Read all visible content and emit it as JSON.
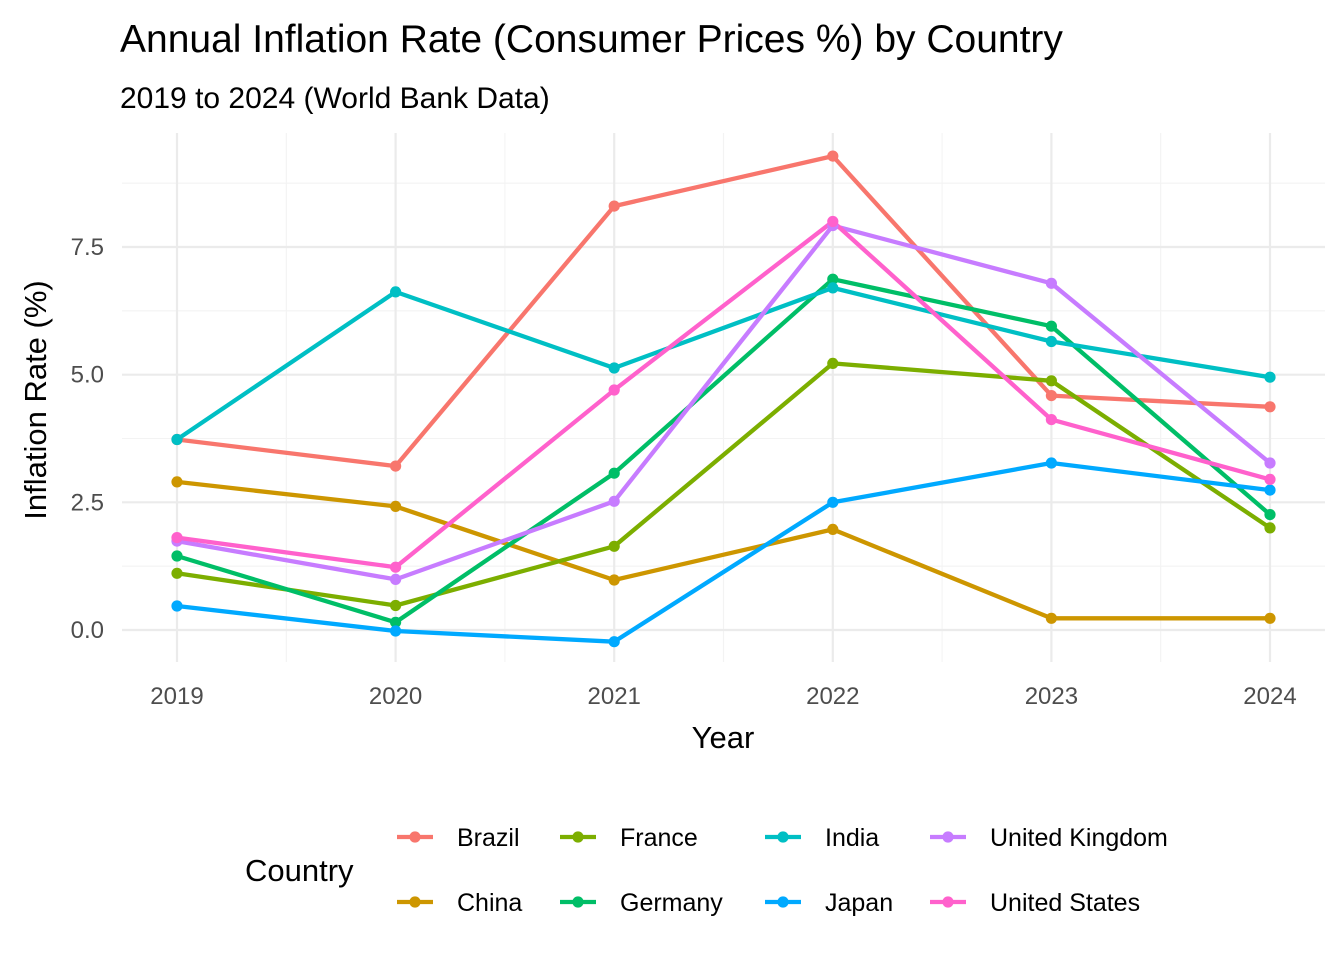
{
  "chart_data": {
    "type": "line",
    "title": "Annual Inflation Rate (Consumer Prices %) by Country",
    "subtitle": "2019 to 2024 (World Bank Data)",
    "xlabel": "Year",
    "ylabel": "Inflation Rate (%)",
    "x": [
      "2019",
      "2020",
      "2021",
      "2022",
      "2023",
      "2024"
    ],
    "y_ticks": [
      "0.0",
      "2.5",
      "5.0",
      "7.5"
    ],
    "y_tick_values": [
      0,
      2.5,
      5,
      7.5
    ],
    "ylim": [
      -0.5,
      9.6
    ],
    "grid": true,
    "legend_position": "bottom",
    "legend_title": "Country",
    "series": [
      {
        "name": "Brazil",
        "color": "#F8766D",
        "values": [
          3.73,
          3.21,
          8.3,
          9.28,
          4.59,
          4.37
        ]
      },
      {
        "name": "China",
        "color": "#CD9600",
        "values": [
          2.9,
          2.42,
          0.98,
          1.97,
          0.23,
          0.23
        ]
      },
      {
        "name": "France",
        "color": "#7CAE00",
        "values": [
          1.11,
          0.48,
          1.64,
          5.22,
          4.88,
          2.0
        ]
      },
      {
        "name": "Germany",
        "color": "#00BE67",
        "values": [
          1.45,
          0.15,
          3.07,
          6.87,
          5.95,
          2.26
        ]
      },
      {
        "name": "India",
        "color": "#00BFC4",
        "values": [
          3.73,
          6.62,
          5.13,
          6.7,
          5.65,
          4.95
        ]
      },
      {
        "name": "Japan",
        "color": "#00A9FF",
        "values": [
          0.47,
          -0.02,
          -0.23,
          2.5,
          3.27,
          2.74
        ]
      },
      {
        "name": "United Kingdom",
        "color": "#C77CFF",
        "values": [
          1.74,
          0.99,
          2.52,
          7.92,
          6.79,
          3.27
        ]
      },
      {
        "name": "United States",
        "color": "#FF61CC",
        "values": [
          1.81,
          1.23,
          4.7,
          8.0,
          4.12,
          2.95
        ]
      }
    ]
  }
}
